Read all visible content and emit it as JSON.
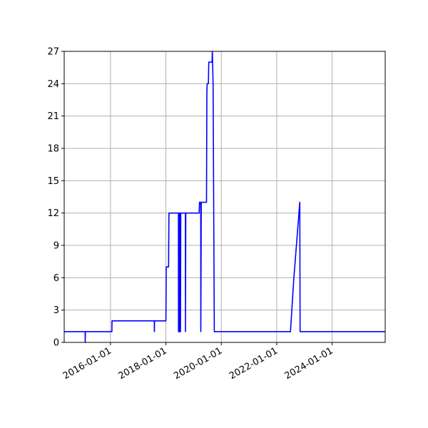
{
  "chart_data": {
    "type": "line",
    "title": "",
    "xlabel": "",
    "ylabel": "",
    "x_is_date": true,
    "xlim": [
      "2014-05-01",
      "2025-12-01"
    ],
    "ylim": [
      0,
      27
    ],
    "grid": true,
    "legend": "none",
    "x_ticks": [
      "2016-01-01",
      "2018-01-01",
      "2020-01-01",
      "2022-01-01",
      "2024-01-01"
    ],
    "y_ticks": [
      0,
      3,
      6,
      9,
      12,
      15,
      18,
      21,
      24,
      27
    ],
    "series": [
      {
        "color": "#0000ff",
        "points": [
          [
            "2014-05-01",
            1
          ],
          [
            "2015-02-01",
            1
          ],
          [
            "2015-02-02",
            0
          ],
          [
            "2015-02-04",
            1
          ],
          [
            "2016-01-20",
            1
          ],
          [
            "2016-01-21",
            2
          ],
          [
            "2017-08-01",
            2
          ],
          [
            "2017-08-02",
            1
          ],
          [
            "2017-08-04",
            2
          ],
          [
            "2018-01-01",
            2
          ],
          [
            "2018-01-05",
            7
          ],
          [
            "2018-02-05",
            7
          ],
          [
            "2018-02-10",
            12
          ],
          [
            "2018-06-15",
            12
          ],
          [
            "2018-06-16",
            1
          ],
          [
            "2018-06-22",
            12
          ],
          [
            "2018-06-25",
            1
          ],
          [
            "2018-06-30",
            12
          ],
          [
            "2018-07-03",
            1
          ],
          [
            "2018-07-08",
            12
          ],
          [
            "2018-07-12",
            1
          ],
          [
            "2018-07-16",
            12
          ],
          [
            "2018-09-15",
            12
          ],
          [
            "2018-09-16",
            1
          ],
          [
            "2018-09-20",
            12
          ],
          [
            "2019-03-15",
            12
          ],
          [
            "2019-03-20",
            13
          ],
          [
            "2019-04-05",
            13
          ],
          [
            "2019-04-06",
            1
          ],
          [
            "2019-04-12",
            13
          ],
          [
            "2019-06-20",
            13
          ],
          [
            "2019-06-25",
            23
          ],
          [
            "2019-06-28",
            24
          ],
          [
            "2019-07-15",
            24
          ],
          [
            "2019-07-20",
            26
          ],
          [
            "2019-09-01",
            26
          ],
          [
            "2019-09-05",
            27
          ],
          [
            "2019-09-15",
            24
          ],
          [
            "2019-10-01",
            1
          ],
          [
            "2022-07-01",
            1
          ],
          [
            "2022-08-15",
            6
          ],
          [
            "2022-11-01",
            13
          ],
          [
            "2022-11-05",
            1
          ],
          [
            "2025-12-01",
            1
          ]
        ]
      }
    ]
  }
}
